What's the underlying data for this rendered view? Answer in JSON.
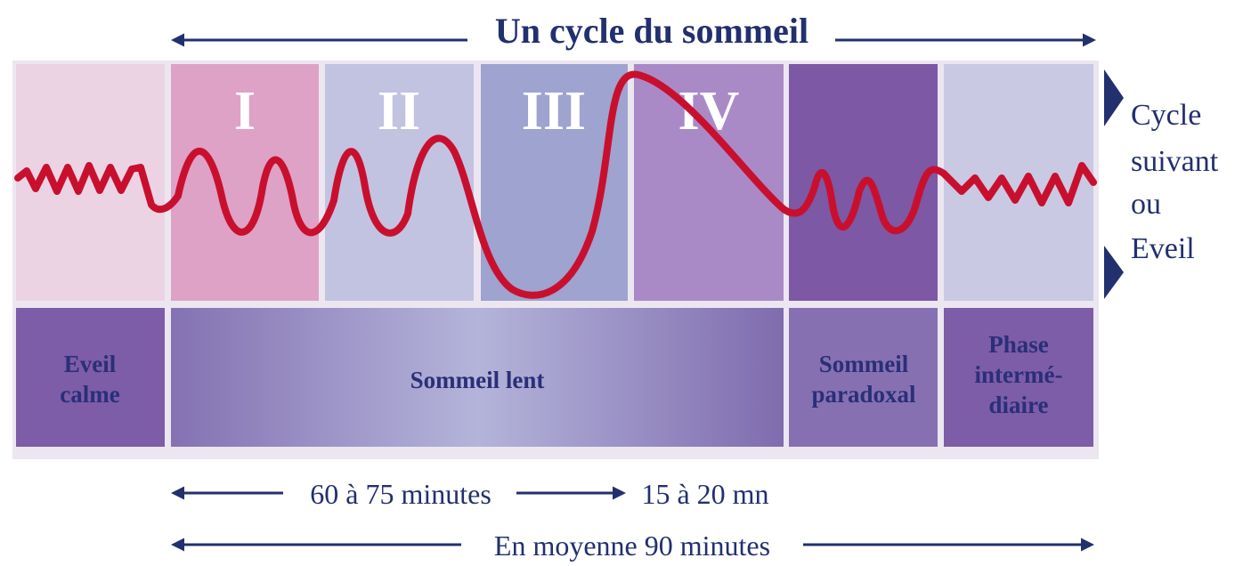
{
  "title": "Un cycle du sommeil",
  "stages": [
    "I",
    "II",
    "III",
    "IV"
  ],
  "side_label": [
    "Cycle",
    "suivant",
    "ou",
    "Eveil"
  ],
  "phases": [
    {
      "lines": [
        "Eveil",
        "calme"
      ]
    },
    {
      "lines": [
        "Sommeil lent"
      ]
    },
    {
      "lines": [
        "Sommeil",
        "paradoxal"
      ]
    },
    {
      "lines": [
        "Phase",
        "intermé-",
        "diaire"
      ]
    }
  ],
  "durations": {
    "slow": "60 à 75 minutes",
    "paradoxal": "15 à 20 mn",
    "average": "En moyenne 90 minutes"
  }
}
